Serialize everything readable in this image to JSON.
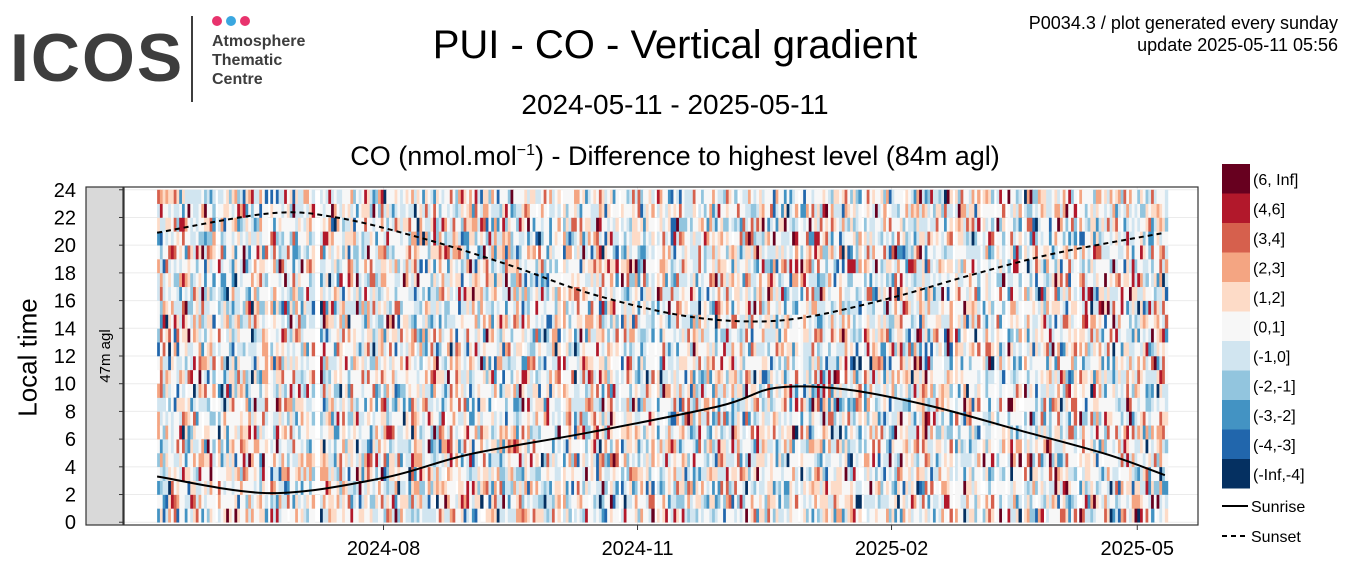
{
  "logo": {
    "text": "ICOS",
    "line1": "Atmosphere",
    "line2": "Thematic",
    "line3": "Centre",
    "dot_colors": [
      "#e8336d",
      "#3aa7e0",
      "#e8336d"
    ]
  },
  "info": {
    "line1": "P0034.3 / plot generated every sunday",
    "line2": "update  2025-05-11 05:56"
  },
  "chart_data": {
    "type": "heatmap",
    "title": "PUI - CO - Vertical gradient",
    "date_range": "2024-05-11 - 2025-05-11",
    "subtitle_main": "CO (nmol.mol",
    "subtitle_sup": "−1",
    "subtitle_end": ") - Difference to highest level (84m agl)",
    "ylabel": "Local time",
    "facet_label": "47m agl",
    "x_range": [
      "2024-05-11",
      "2025-05-11"
    ],
    "x_ticks": [
      "2024-08",
      "2024-11",
      "2025-02",
      "2025-05"
    ],
    "y_range": [
      0,
      24
    ],
    "y_ticks": [
      0,
      2,
      4,
      6,
      8,
      10,
      12,
      14,
      16,
      18,
      20,
      22,
      24
    ],
    "legend": [
      {
        "label": "(6, Inf]",
        "color": "#67001f"
      },
      {
        "label": "(4,6]",
        "color": "#b2182b"
      },
      {
        "label": "(3,4]",
        "color": "#d6604d"
      },
      {
        "label": "(2,3]",
        "color": "#f4a582"
      },
      {
        "label": "(1,2]",
        "color": "#fddbc7"
      },
      {
        "label": "(0,1]",
        "color": "#f7f7f7"
      },
      {
        "label": "(-1,0]",
        "color": "#d1e5f0"
      },
      {
        "label": "(-2,-1]",
        "color": "#92c5de"
      },
      {
        "label": "(-3,-2]",
        "color": "#4393c3"
      },
      {
        "label": "(-4,-3]",
        "color": "#2166ac"
      },
      {
        "label": "(-Inf,-4]",
        "color": "#053061"
      }
    ],
    "lines": [
      {
        "name": "Sunrise",
        "style": "solid",
        "points": [
          [
            "2024-05-11",
            3.3
          ],
          [
            "2024-06-21",
            2.1
          ],
          [
            "2024-08-01",
            3.2
          ],
          [
            "2024-09-01",
            4.9
          ],
          [
            "2024-10-15",
            6.5
          ],
          [
            "2024-12-01",
            8.4
          ],
          [
            "2024-12-21",
            9.7
          ],
          [
            "2025-01-15",
            9.6
          ],
          [
            "2025-02-15",
            8.4
          ],
          [
            "2025-03-20",
            6.6
          ],
          [
            "2025-04-20",
            4.9
          ],
          [
            "2025-05-11",
            3.4
          ]
        ]
      },
      {
        "name": "Sunset",
        "style": "dashed",
        "points": [
          [
            "2024-05-11",
            20.9
          ],
          [
            "2024-06-21",
            22.3
          ],
          [
            "2024-07-15",
            22.0
          ],
          [
            "2024-08-15",
            20.5
          ],
          [
            "2024-09-15",
            18.6
          ],
          [
            "2024-10-15",
            16.5
          ],
          [
            "2024-11-15",
            15.0
          ],
          [
            "2024-12-10",
            14.5
          ],
          [
            "2025-01-01",
            14.8
          ],
          [
            "2025-02-01",
            16.2
          ],
          [
            "2025-03-01",
            17.8
          ],
          [
            "2025-04-01",
            19.4
          ],
          [
            "2025-05-11",
            20.9
          ]
        ]
      }
    ]
  }
}
